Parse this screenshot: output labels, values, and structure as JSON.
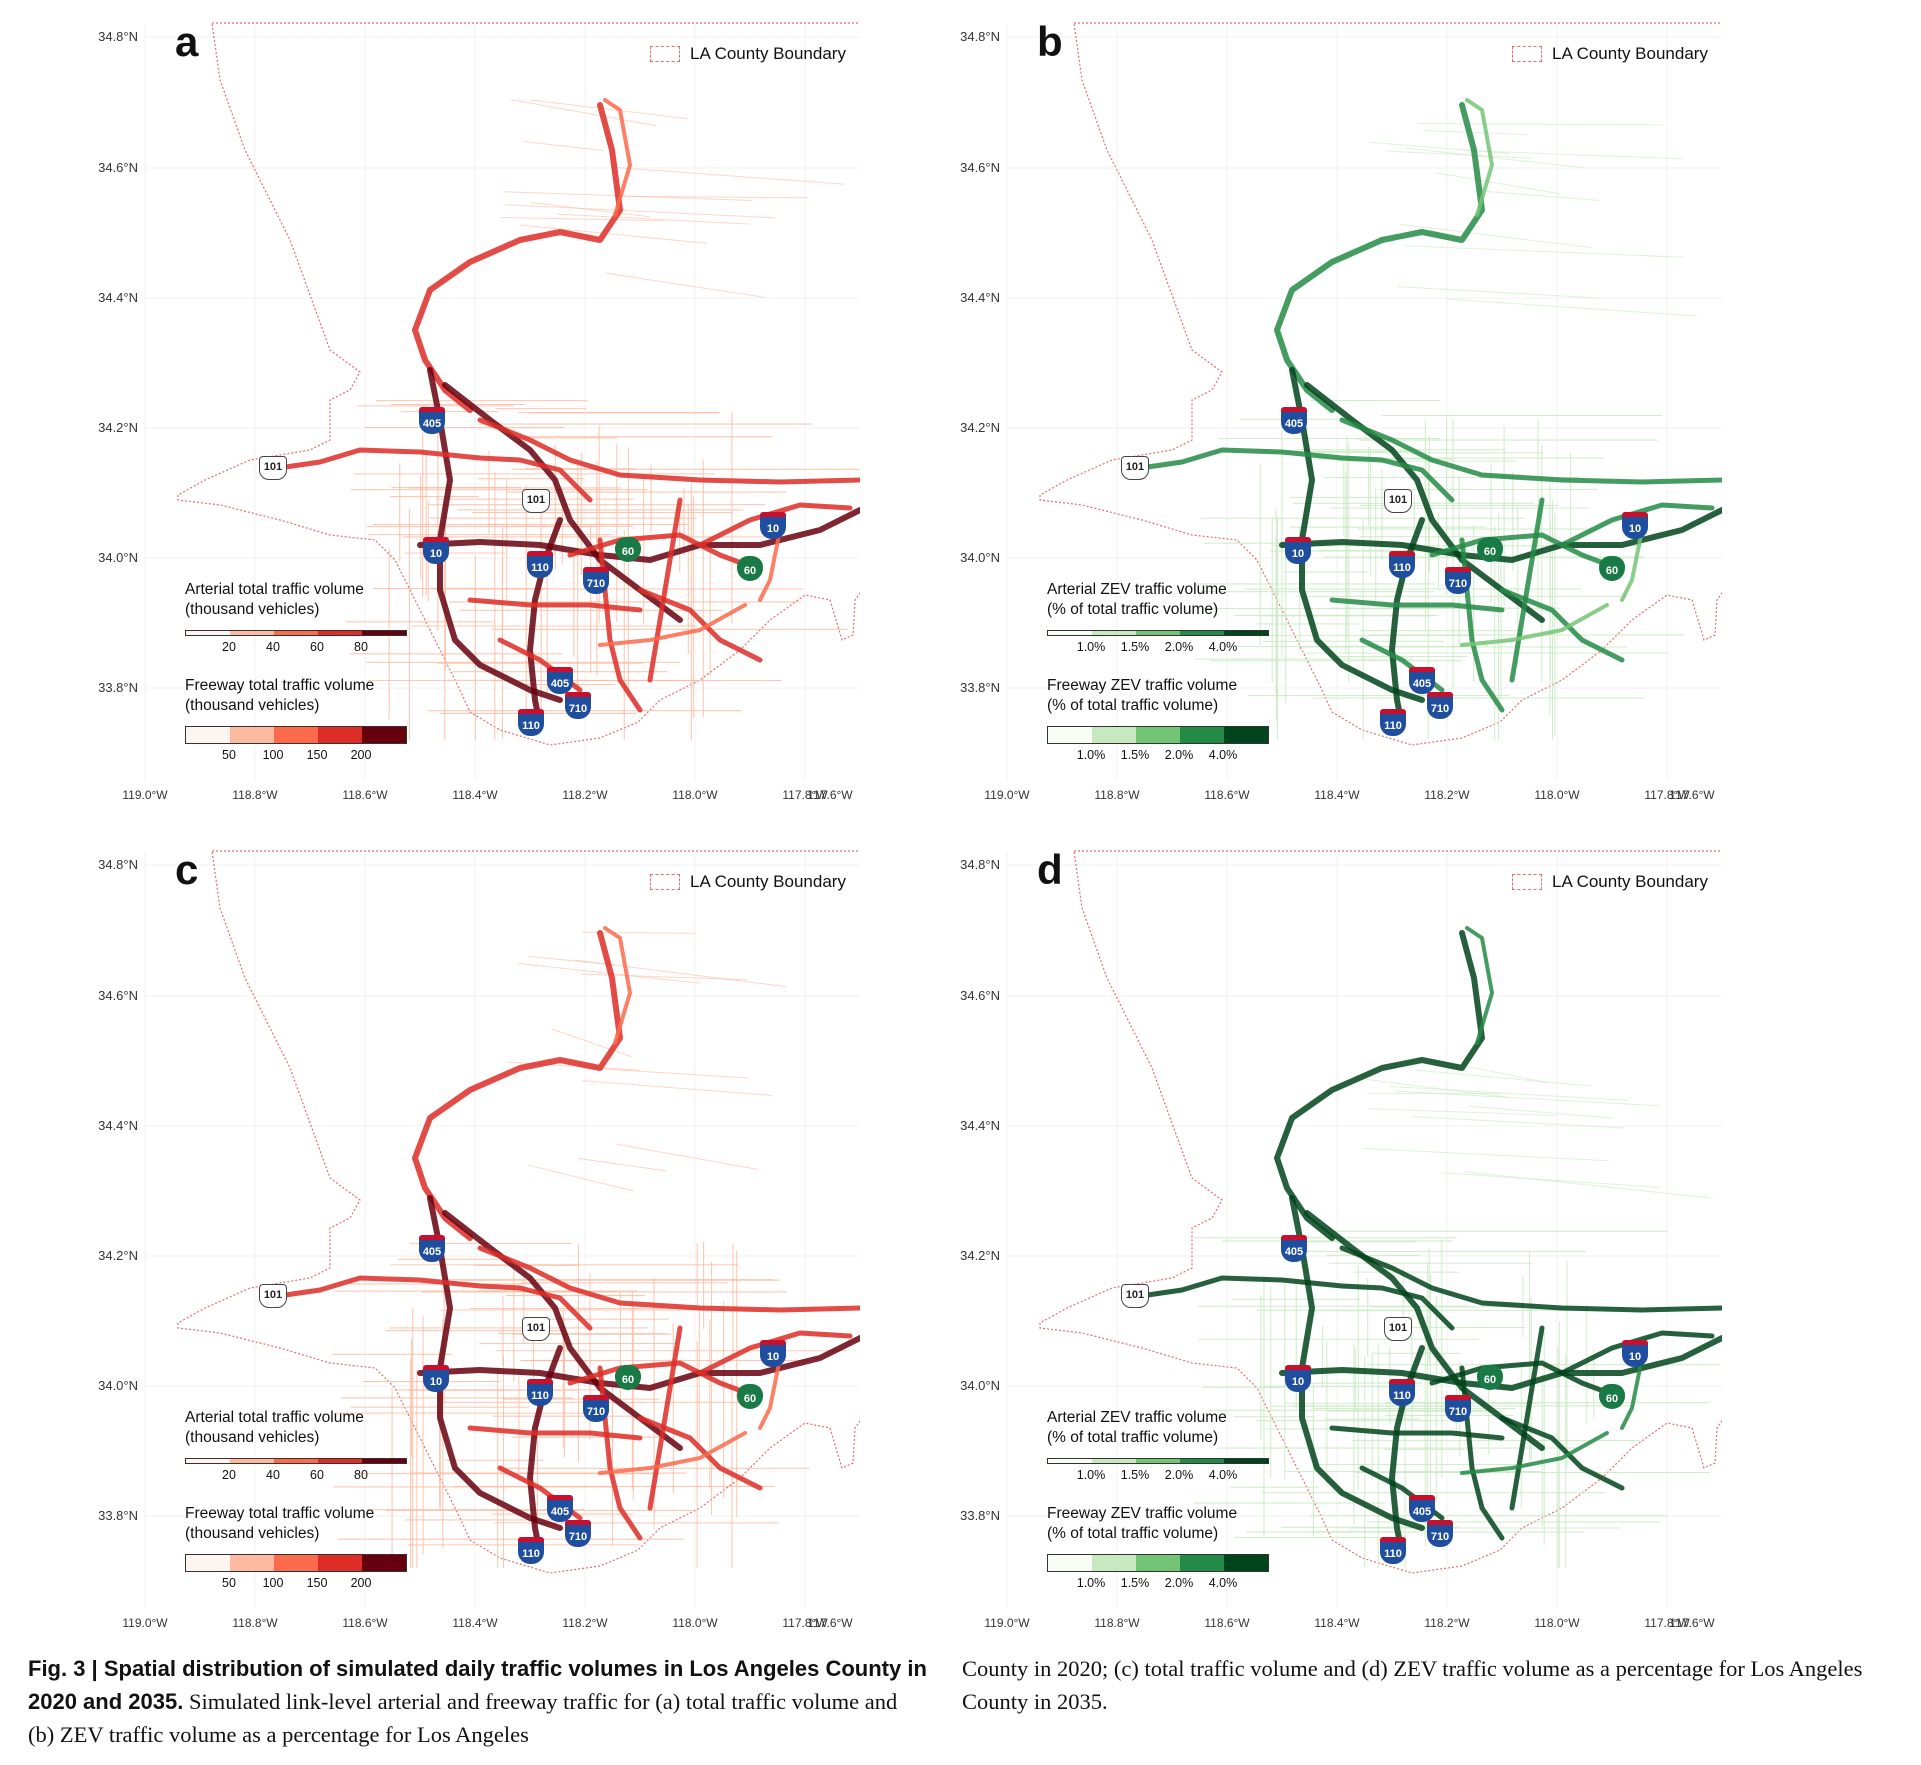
{
  "map": {
    "boundary_legend": "LA County Boundary",
    "y_ticks": [
      "34.8°N",
      "34.6°N",
      "34.4°N",
      "34.2°N",
      "34.0°N",
      "33.8°N"
    ],
    "x_ticks": [
      "119.0°W",
      "118.8°W",
      "118.6°W",
      "118.4°W",
      "118.2°W",
      "118.0°W",
      "117.8°W",
      "117.6°W"
    ],
    "shields": {
      "i405": "405",
      "us101": "101",
      "i10": "10",
      "i110": "110",
      "i710": "710",
      "sr60": "60"
    }
  },
  "panels": [
    {
      "letter": "a",
      "theme": "reds",
      "arterial_title_1": "Arterial total traffic volume",
      "arterial_title_2": "(thousand vehicles)",
      "arterial_ticks": [
        "20",
        "40",
        "60",
        "80"
      ],
      "freeway_title_1": "Freeway total traffic volume",
      "freeway_title_2": "(thousand vehicles)",
      "freeway_ticks": [
        "50",
        "100",
        "150",
        "200"
      ]
    },
    {
      "letter": "b",
      "theme": "greens",
      "arterial_title_1": "Arterial ZEV traffic volume",
      "arterial_title_2": "(% of total traffic volume)",
      "arterial_ticks": [
        "1.0%",
        "1.5%",
        "2.0%",
        "4.0%"
      ],
      "freeway_title_1": "Freeway ZEV traffic volume",
      "freeway_title_2": "(% of total traffic volume)",
      "freeway_ticks": [
        "1.0%",
        "1.5%",
        "2.0%",
        "4.0%"
      ]
    },
    {
      "letter": "c",
      "theme": "reds",
      "arterial_title_1": "Arterial total traffic volume",
      "arterial_title_2": "(thousand vehicles)",
      "arterial_ticks": [
        "20",
        "40",
        "60",
        "80"
      ],
      "freeway_title_1": "Freeway total traffic volume",
      "freeway_title_2": "(thousand vehicles)",
      "freeway_ticks": [
        "50",
        "100",
        "150",
        "200"
      ]
    },
    {
      "letter": "d",
      "theme": "greens",
      "arterial_title_1": "Arterial ZEV traffic volume",
      "arterial_title_2": "(% of total traffic volume)",
      "arterial_ticks": [
        "1.0%",
        "1.5%",
        "2.0%",
        "4.0%"
      ],
      "freeway_title_1": "Freeway ZEV traffic volume",
      "freeway_title_2": "(% of total traffic volume)",
      "freeway_ticks": [
        "1.0%",
        "1.5%",
        "2.0%",
        "4.0%"
      ]
    }
  ],
  "colors": {
    "reds": [
      "#fff5f0",
      "#fcbba1",
      "#fb6a4a",
      "#de2d26",
      "#67000d"
    ],
    "greens": [
      "#f7fcf5",
      "#c7e9c0",
      "#74c476",
      "#238b45",
      "#00441b"
    ],
    "boundary": "#e56b6b"
  },
  "caption": {
    "label": "Fig. 3 | Spatial distribution of simulated daily traffic volumes in Los Angeles County in 2020 and 2035.",
    "left_text": "Simulated link-level arterial and freeway traffic for (a) total traffic volume and (b) ZEV traffic volume as a percentage for Los Angeles",
    "right_text": "County in 2020; (c) total traffic volume and (d) ZEV traffic volume as a percentage for Los Angeles County in 2035."
  }
}
